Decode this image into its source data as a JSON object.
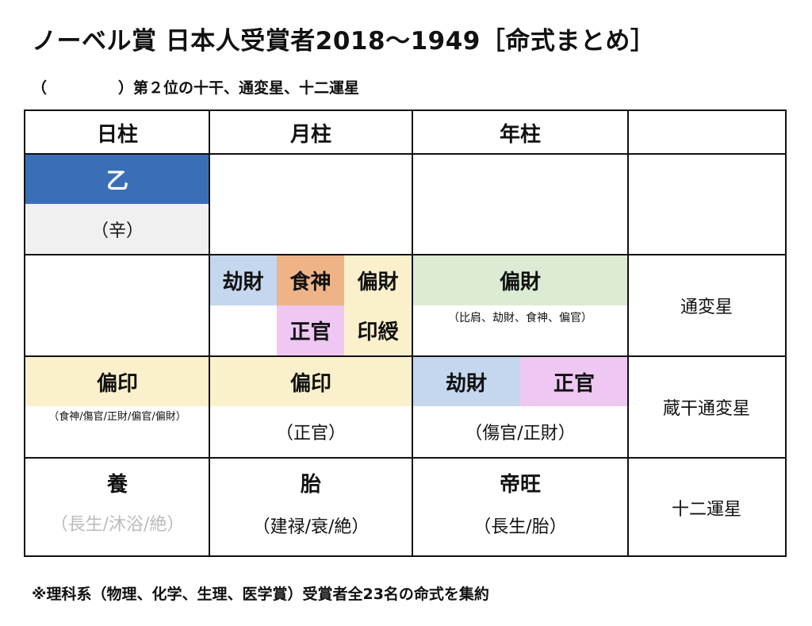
{
  "title": "ノーベル賞 日本人受賞者2018〜1949［命式まとめ］",
  "subtitle": {
    "paren_open": "（",
    "paren_close": "）",
    "text": "第２位の十干、通変星、十二運星"
  },
  "headers": {
    "day": "日柱",
    "month": "月柱",
    "year": "年柱"
  },
  "day_stem": {
    "main": "乙",
    "hidden": "（辛）"
  },
  "tsuhen": {
    "month_cells": [
      "劫財",
      "食神",
      "偏財",
      "正官",
      "印綬"
    ],
    "year_main": "偏財",
    "year_sub": "（比肩、劫財、食神、偏官）",
    "row_label": "通変星"
  },
  "zoukan": {
    "day_main": "偏印",
    "day_sub": "（食神/傷官/正財/偏官/偏財）",
    "month_main": "偏印",
    "month_sub": "（正官）",
    "year_left": "劫財",
    "year_right": "正官",
    "year_sub": "（傷官/正財）",
    "row_label": "蔵干通変星"
  },
  "juuni": {
    "day_main": "養",
    "day_sub": "（長生/沐浴/絶）",
    "month_main": "胎",
    "month_sub": "（建禄/衰/絶）",
    "year_main": "帝旺",
    "year_sub": "（長生/胎）",
    "row_label": "十二運星"
  },
  "footnote": "※理科系（物理、化学、生理、医学賞）受賞者全23名の命式を集約",
  "colors": {
    "blue": "#3a6fb8",
    "light_gray": "#f0f0f0",
    "light_blue": "#c4d7ee",
    "orange": "#eeb488",
    "cream": "#fbf0cc",
    "pink": "#eec8f2",
    "green": "#dcebd4"
  }
}
